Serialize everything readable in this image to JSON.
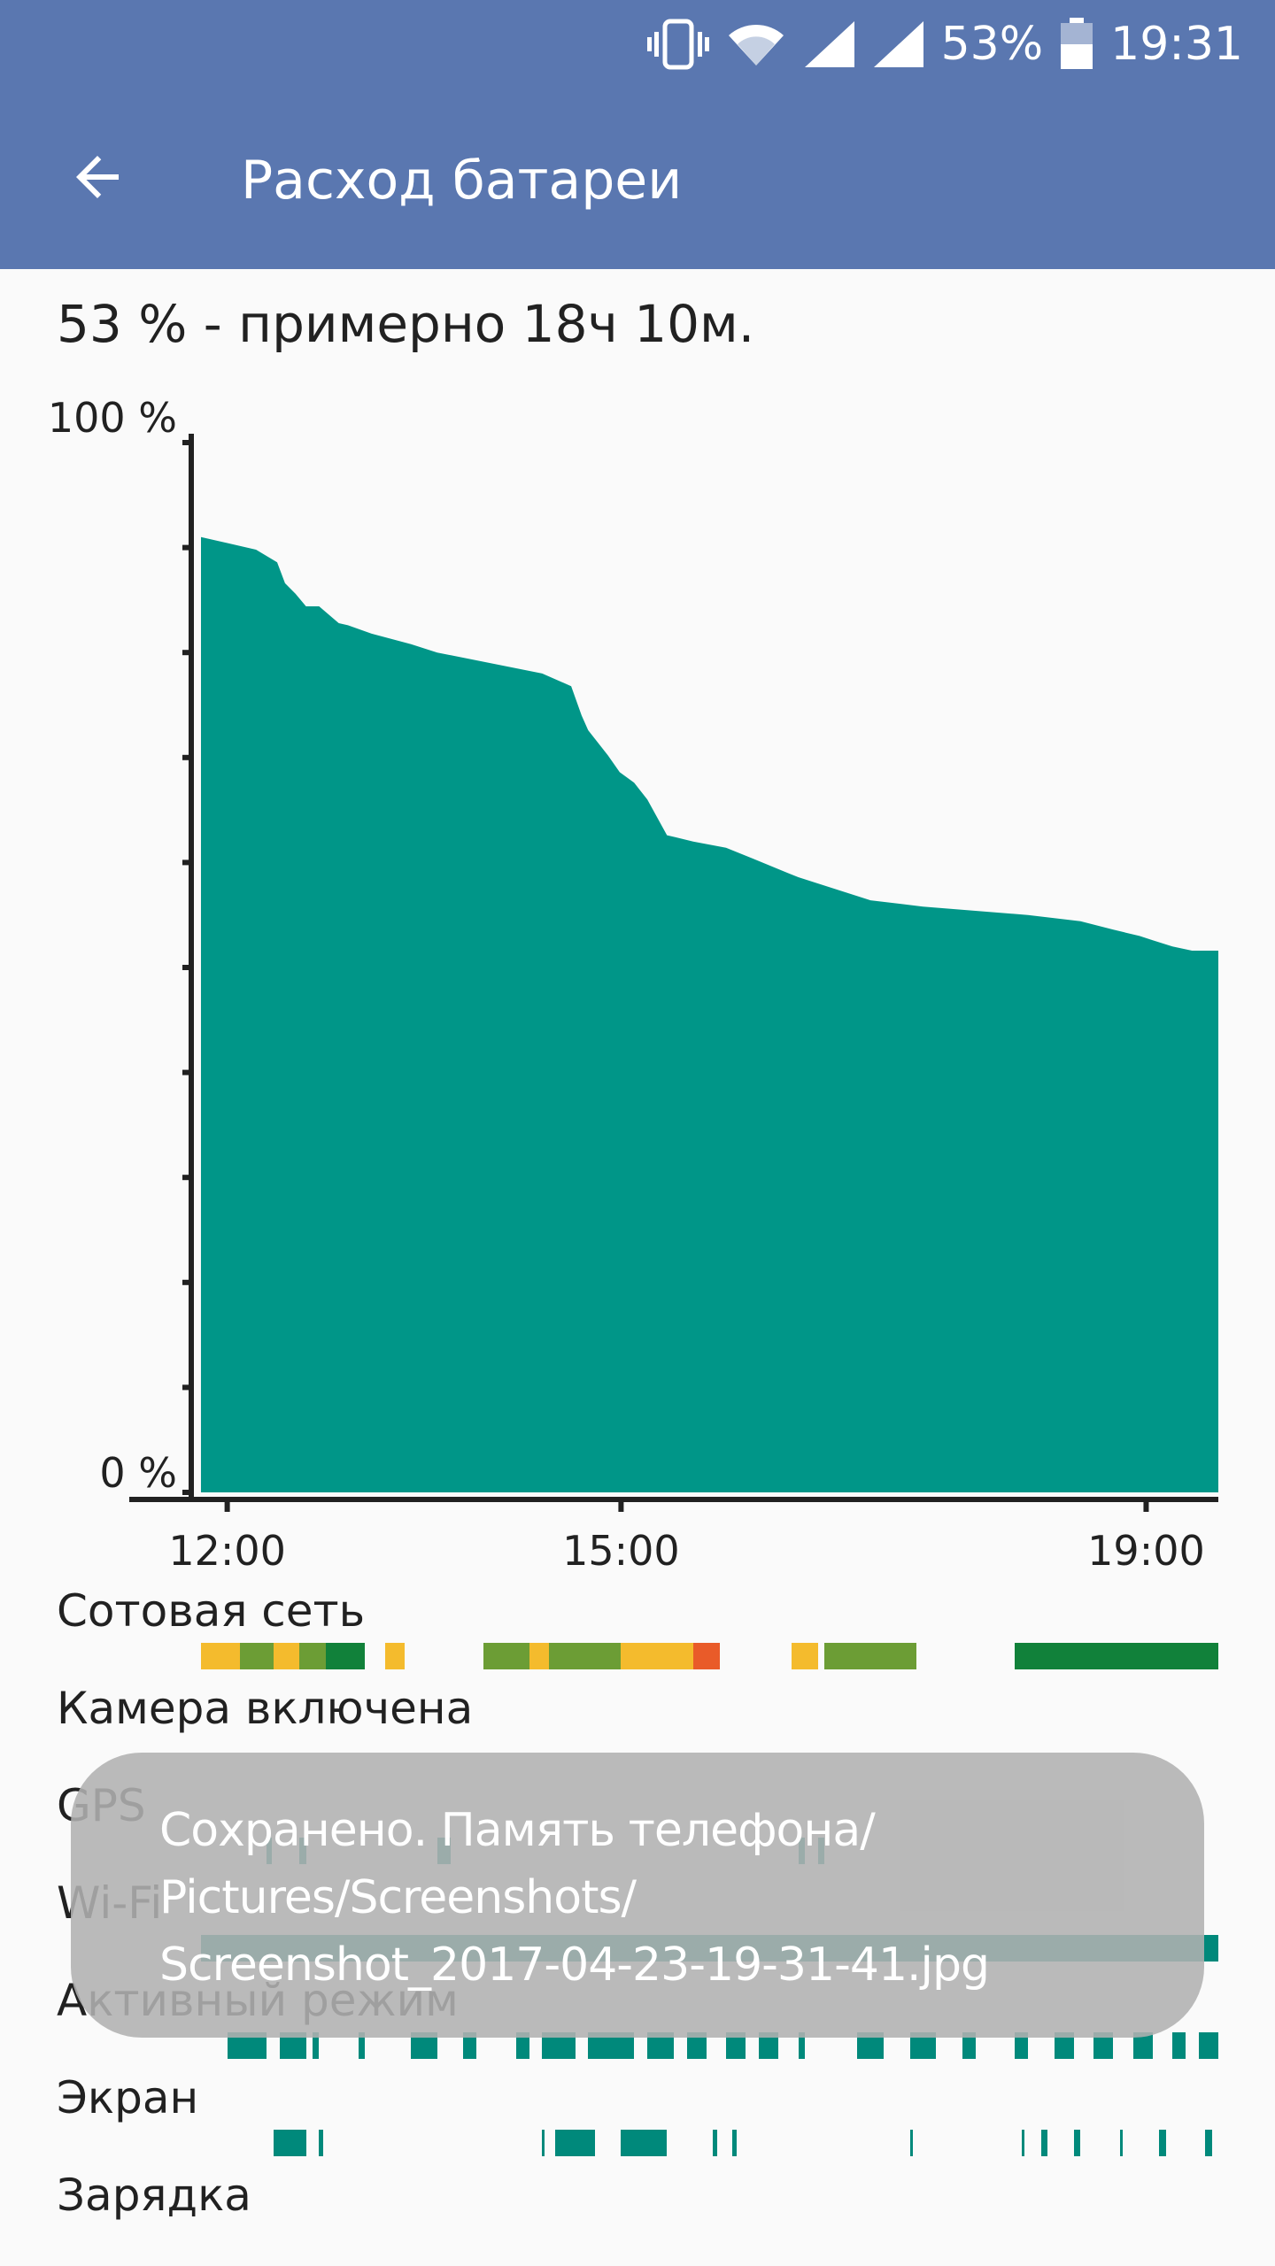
{
  "status_bar": {
    "battery_percent": "53%",
    "time": "19:31",
    "icons": [
      "vibrate-icon",
      "wifi-icon",
      "signal-icon",
      "signal-icon",
      "battery-icon"
    ]
  },
  "app_bar": {
    "back_icon": "arrow-back-icon",
    "title": "Расход батареи"
  },
  "summary": "53 % - примерно 18ч 10м.",
  "chart_data": {
    "type": "area",
    "ylim": [
      0,
      100
    ],
    "y_tick_labels": [
      "100 %",
      "0 %"
    ],
    "x_tick_labels": [
      "12:00",
      "15:00",
      "19:00"
    ],
    "x_ticks_hours": [
      12.0,
      15.0,
      19.0
    ],
    "xlim_hours": [
      11.78,
      19.55
    ],
    "color": "#009688",
    "x": [
      11.8,
      12.22,
      12.38,
      12.44,
      12.52,
      12.6,
      12.7,
      12.85,
      12.92,
      13.1,
      13.4,
      13.6,
      14.4,
      14.62,
      14.7,
      14.75,
      14.9,
      14.99,
      15.1,
      15.2,
      15.35,
      15.55,
      15.8,
      16.0,
      16.27,
      16.35,
      16.5,
      16.9,
      17.3,
      17.7,
      18.1,
      18.5,
      18.75,
      18.95,
      19.05,
      19.2,
      19.35,
      19.55
    ],
    "values": [
      91.0,
      89.8,
      88.6,
      86.6,
      85.6,
      84.4,
      84.4,
      82.8,
      82.6,
      81.8,
      80.8,
      80.0,
      78.0,
      76.8,
      74.0,
      72.6,
      70.2,
      68.6,
      67.6,
      66.0,
      62.6,
      62.0,
      61.4,
      60.4,
      59.0,
      58.6,
      58.0,
      56.4,
      55.8,
      55.4,
      55.0,
      54.4,
      53.6,
      53.0,
      52.6,
      52.0,
      51.6,
      51.6
    ]
  },
  "rows": [
    {
      "label": "Сотовая сеть",
      "segments": [
        [
          11.8,
          12.1,
          "#f4bb2d"
        ],
        [
          12.1,
          12.35,
          "#6c9d35"
        ],
        [
          12.35,
          12.55,
          "#f4bb2d"
        ],
        [
          12.55,
          12.75,
          "#6c9d35"
        ],
        [
          12.75,
          13.05,
          "#11813a"
        ],
        [
          13.2,
          13.35,
          "#f4bb2d"
        ],
        [
          13.95,
          14.3,
          "#6c9d35"
        ],
        [
          14.3,
          14.45,
          "#f4bb2d"
        ],
        [
          14.45,
          15.0,
          "#6c9d35"
        ],
        [
          15.0,
          15.55,
          "#f4bb2d"
        ],
        [
          15.55,
          15.75,
          "#e95b29"
        ],
        [
          16.3,
          16.5,
          "#f4bb2d"
        ],
        [
          16.55,
          17.25,
          "#6c9d35"
        ],
        [
          18.0,
          18.65,
          "#11813a"
        ],
        [
          18.65,
          19.05,
          "#11813a"
        ],
        [
          19.05,
          19.55,
          "#11813a"
        ]
      ]
    },
    {
      "label": "Камера включена",
      "segments": []
    },
    {
      "label": "GPS",
      "segments": [
        [
          12.3,
          12.34,
          "#00897b"
        ],
        [
          12.55,
          12.6,
          "#00897b"
        ],
        [
          13.6,
          13.7,
          "#00897b"
        ],
        [
          16.35,
          16.4,
          "#00897b"
        ],
        [
          16.5,
          16.55,
          "#00897b"
        ]
      ]
    },
    {
      "label": "Wi-Fi",
      "segments": [
        [
          11.8,
          19.55,
          "#00897b"
        ]
      ]
    },
    {
      "label": "Активный режим",
      "segments": [
        [
          12.0,
          12.3,
          "#00897b"
        ],
        [
          12.4,
          12.6,
          "#00897b"
        ],
        [
          12.65,
          12.7,
          "#00897b"
        ],
        [
          13.0,
          13.05,
          "#00897b"
        ],
        [
          13.4,
          13.6,
          "#00897b"
        ],
        [
          13.8,
          13.9,
          "#00897b"
        ],
        [
          14.2,
          14.3,
          "#00897b"
        ],
        [
          14.4,
          14.65,
          "#00897b"
        ],
        [
          14.75,
          15.1,
          "#00897b"
        ],
        [
          15.2,
          15.4,
          "#00897b"
        ],
        [
          15.5,
          15.65,
          "#00897b"
        ],
        [
          15.8,
          15.95,
          "#00897b"
        ],
        [
          16.05,
          16.2,
          "#00897b"
        ],
        [
          16.35,
          16.4,
          "#00897b"
        ],
        [
          16.8,
          17.0,
          "#00897b"
        ],
        [
          17.2,
          17.4,
          "#00897b"
        ],
        [
          17.6,
          17.7,
          "#00897b"
        ],
        [
          18.0,
          18.1,
          "#00897b"
        ],
        [
          18.3,
          18.45,
          "#00897b"
        ],
        [
          18.6,
          18.75,
          "#00897b"
        ],
        [
          18.9,
          19.05,
          "#00897b"
        ],
        [
          19.2,
          19.3,
          "#00897b"
        ],
        [
          19.4,
          19.55,
          "#00897b"
        ]
      ]
    },
    {
      "label": "Экран",
      "segments": [
        [
          12.35,
          12.6,
          "#00897b"
        ],
        [
          12.7,
          12.73,
          "#00897b"
        ],
        [
          14.4,
          14.42,
          "#00897b"
        ],
        [
          14.5,
          14.8,
          "#00897b"
        ],
        [
          15.0,
          15.35,
          "#00897b"
        ],
        [
          15.7,
          15.73,
          "#00897b"
        ],
        [
          15.85,
          15.88,
          "#00897b"
        ],
        [
          17.2,
          17.22,
          "#00897b"
        ],
        [
          18.05,
          18.07,
          "#00897b"
        ],
        [
          18.2,
          18.25,
          "#00897b"
        ],
        [
          18.45,
          18.5,
          "#00897b"
        ],
        [
          18.8,
          18.82,
          "#00897b"
        ],
        [
          19.1,
          19.15,
          "#00897b"
        ],
        [
          19.45,
          19.5,
          "#00897b"
        ]
      ]
    },
    {
      "label": "Зарядка",
      "segments": []
    }
  ],
  "toast": {
    "text": "Сохранено. Память телефона/\nPictures/Screenshots/\nScreenshot_2017-04-23-19-31-41.jpg"
  }
}
